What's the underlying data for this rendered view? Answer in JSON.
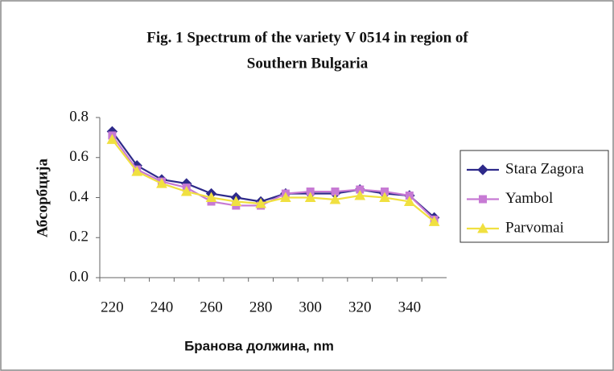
{
  "chart_data": {
    "type": "line",
    "title": [
      "Fig. 1 Spectrum of the variety V 0514 in region of",
      "Southern Bulgaria"
    ],
    "x_label": "Бранова должина, nm",
    "y_label": "Абсорбција",
    "categories": [
      220,
      null,
      240,
      null,
      260,
      null,
      280,
      null,
      300,
      null,
      320,
      null,
      340,
      null
    ],
    "series": [
      {
        "name": "Stara Zagora",
        "color": "#2e2a8a",
        "marker": "diamond",
        "values": [
          0.73,
          0.56,
          0.49,
          0.47,
          0.42,
          0.4,
          0.38,
          0.42,
          0.42,
          0.42,
          0.44,
          0.42,
          0.41,
          0.3
        ]
      },
      {
        "name": "Yambol",
        "color": "#c77ad4",
        "marker": "square",
        "values": [
          0.71,
          0.54,
          0.48,
          0.45,
          0.38,
          0.36,
          0.36,
          0.42,
          0.43,
          0.43,
          0.44,
          0.43,
          0.41,
          0.29
        ]
      },
      {
        "name": "Parvomai",
        "color": "#f0e040",
        "marker": "triangle",
        "values": [
          0.69,
          0.53,
          0.47,
          0.43,
          0.4,
          0.38,
          0.37,
          0.4,
          0.4,
          0.39,
          0.41,
          0.4,
          0.38,
          0.28
        ]
      }
    ],
    "ylim": [
      0,
      0.8
    ],
    "yticks": [
      {
        "value": 0,
        "label": "0.0"
      },
      0.2,
      0.4,
      0.6,
      0.8
    ],
    "grid": false,
    "legend": "right"
  }
}
